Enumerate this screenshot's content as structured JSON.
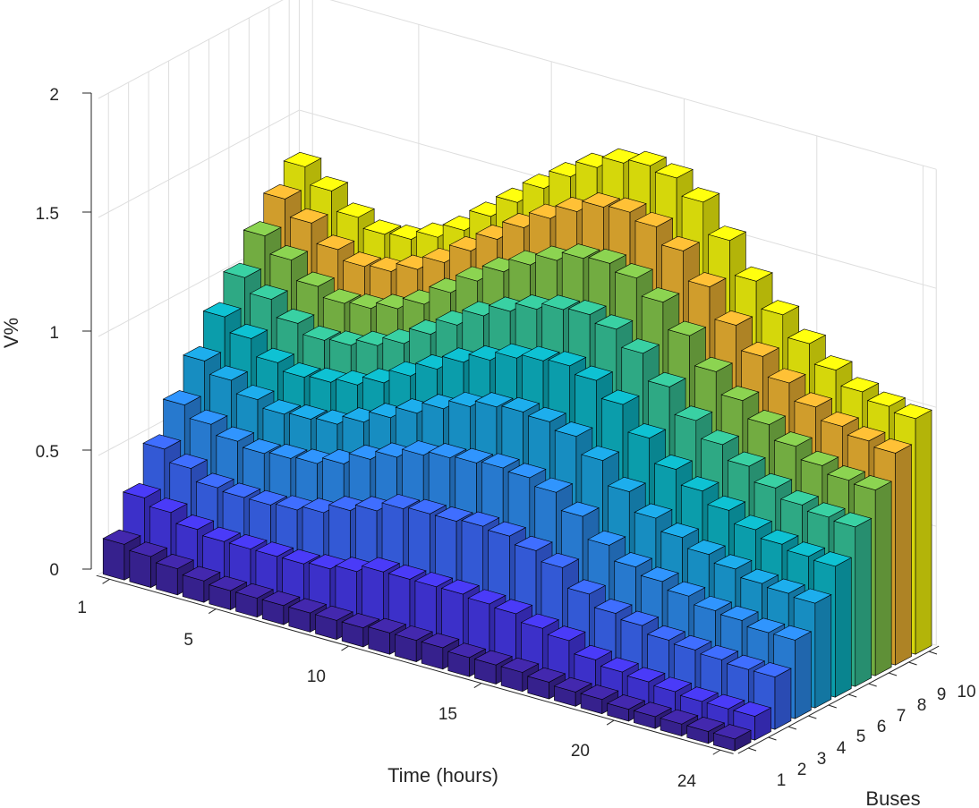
{
  "chart_data": {
    "type": "bar3d",
    "title": "",
    "xlabel": "Time (hours)",
    "ylabel": "Buses",
    "zlabel": "V%",
    "x_ticks": [
      "1",
      "5",
      "10",
      "15",
      "20",
      "24"
    ],
    "y_ticks": [
      "1",
      "2",
      "3",
      "4",
      "5",
      "6",
      "7",
      "8",
      "9",
      "10"
    ],
    "z_ticks": [
      "0",
      "0.5",
      "1",
      "1.5",
      "2"
    ],
    "zlim": [
      0,
      2
    ],
    "hours": [
      1,
      2,
      3,
      4,
      5,
      6,
      7,
      8,
      9,
      10,
      11,
      12,
      13,
      14,
      15,
      16,
      17,
      18,
      19,
      20,
      21,
      22,
      23,
      24
    ],
    "series": [
      {
        "name": "1",
        "values": [
          0.15,
          0.13,
          0.11,
          0.09,
          0.08,
          0.08,
          0.08,
          0.08,
          0.08,
          0.08,
          0.09,
          0.09,
          0.09,
          0.08,
          0.08,
          0.08,
          0.07,
          0.06,
          0.06,
          0.05,
          0.05,
          0.05,
          0.05,
          0.05
        ]
      },
      {
        "name": "2",
        "values": [
          0.3,
          0.27,
          0.23,
          0.21,
          0.21,
          0.21,
          0.21,
          0.22,
          0.24,
          0.27,
          0.27,
          0.27,
          0.27,
          0.26,
          0.25,
          0.22,
          0.2,
          0.15,
          0.13,
          0.12,
          0.11,
          0.1,
          0.1,
          0.1
        ]
      },
      {
        "name": "3",
        "values": [
          0.46,
          0.41,
          0.36,
          0.35,
          0.35,
          0.36,
          0.38,
          0.42,
          0.45,
          0.49,
          0.5,
          0.5,
          0.51,
          0.5,
          0.47,
          0.43,
          0.35,
          0.3,
          0.28,
          0.25,
          0.24,
          0.23,
          0.22,
          0.22
        ]
      },
      {
        "name": "4",
        "values": [
          0.6,
          0.55,
          0.51,
          0.49,
          0.5,
          0.51,
          0.54,
          0.59,
          0.63,
          0.67,
          0.69,
          0.7,
          0.71,
          0.7,
          0.67,
          0.6,
          0.51,
          0.45,
          0.42,
          0.39,
          0.36,
          0.35,
          0.33,
          0.33
        ]
      },
      {
        "name": "5",
        "values": [
          0.74,
          0.69,
          0.64,
          0.61,
          0.62,
          0.63,
          0.67,
          0.72,
          0.77,
          0.82,
          0.86,
          0.89,
          0.9,
          0.89,
          0.86,
          0.79,
          0.69,
          0.61,
          0.56,
          0.52,
          0.49,
          0.46,
          0.45,
          0.44
        ]
      },
      {
        "name": "6",
        "values": [
          0.88,
          0.82,
          0.75,
          0.72,
          0.73,
          0.75,
          0.79,
          0.85,
          0.91,
          0.97,
          1.01,
          1.05,
          1.07,
          1.08,
          1.05,
          0.98,
          0.87,
          0.77,
          0.71,
          0.66,
          0.61,
          0.58,
          0.56,
          0.55
        ]
      },
      {
        "name": "7",
        "values": [
          1.0,
          0.94,
          0.87,
          0.83,
          0.84,
          0.87,
          0.91,
          0.98,
          1.05,
          1.12,
          1.17,
          1.21,
          1.24,
          1.25,
          1.22,
          1.15,
          1.04,
          0.93,
          0.86,
          0.8,
          0.74,
          0.7,
          0.68,
          0.67
        ]
      },
      {
        "name": "8",
        "values": [
          1.13,
          1.06,
          0.98,
          0.94,
          0.95,
          0.98,
          1.03,
          1.11,
          1.19,
          1.26,
          1.32,
          1.37,
          1.41,
          1.42,
          1.39,
          1.32,
          1.21,
          1.09,
          1.0,
          0.93,
          0.87,
          0.82,
          0.79,
          0.78
        ]
      },
      {
        "name": "9",
        "values": [
          1.24,
          1.17,
          1.09,
          1.05,
          1.06,
          1.1,
          1.16,
          1.24,
          1.32,
          1.4,
          1.47,
          1.53,
          1.58,
          1.59,
          1.56,
          1.49,
          1.37,
          1.24,
          1.14,
          1.06,
          0.99,
          0.94,
          0.91,
          0.89
        ]
      },
      {
        "name": "10",
        "values": [
          1.33,
          1.26,
          1.18,
          1.14,
          1.15,
          1.19,
          1.25,
          1.34,
          1.43,
          1.52,
          1.6,
          1.67,
          1.72,
          1.74,
          1.72,
          1.65,
          1.52,
          1.38,
          1.27,
          1.18,
          1.1,
          1.04,
          1.01,
          0.99
        ]
      }
    ],
    "colors": [
      "#3f26a4",
      "#4638ea",
      "#3b68f8",
      "#2d8df0",
      "#1ba4e0",
      "#0db7c7",
      "#36c59a",
      "#84c84c",
      "#f2b633",
      "#f8fa0d"
    ],
    "edge_color": "#000000",
    "grid": "on"
  }
}
